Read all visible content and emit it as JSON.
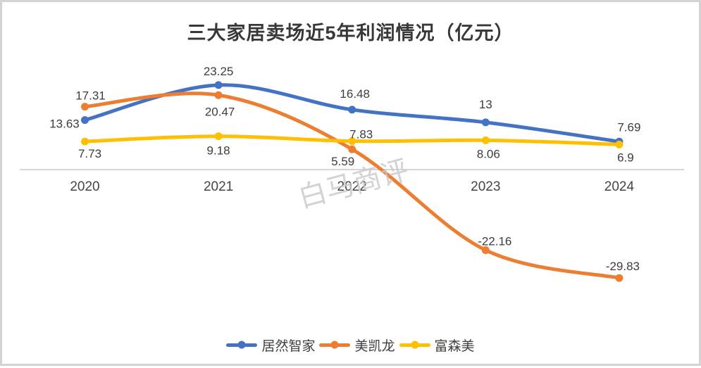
{
  "chart_data": {
    "type": "line",
    "title": "三大家居卖场近5年利润情况（亿元）",
    "categories": [
      "2020",
      "2021",
      "2022",
      "2023",
      "2024"
    ],
    "series": [
      {
        "name": "居然智家",
        "color": "#4472C4",
        "values": [
          13.63,
          23.25,
          16.48,
          13,
          7.69
        ],
        "labels": [
          "13.63",
          "23.25",
          "16.48",
          "13",
          "7.69"
        ]
      },
      {
        "name": "美凯龙",
        "color": "#ED7D31",
        "values": [
          17.31,
          20.47,
          5.59,
          -22.16,
          -29.83
        ],
        "labels": [
          "17.31",
          "20.47",
          "5.59",
          "-22.16",
          "-29.83"
        ]
      },
      {
        "name": "富森美",
        "color": "#FFC000",
        "values": [
          7.73,
          9.18,
          7.83,
          8.06,
          6.9
        ],
        "labels": [
          "7.73",
          "9.18",
          "7.83",
          "8.06",
          "6.9"
        ]
      }
    ],
    "xlabel": "",
    "ylabel": "",
    "ylim": [
      -35,
      30
    ],
    "grid": false,
    "zero_axis_line": true,
    "smooth": true,
    "markers": true,
    "data_labels": true,
    "legend_position": "bottom"
  },
  "watermark": {
    "text": "白马商评"
  },
  "colors": {
    "axis_line": "#D6D6D6",
    "data_label": "#3D3D3D",
    "tick_label": "#454545",
    "title": "#383838",
    "watermark": "#C9C9C9",
    "frame_border": "#D4D4D4",
    "background": "#FFFFFF"
  }
}
